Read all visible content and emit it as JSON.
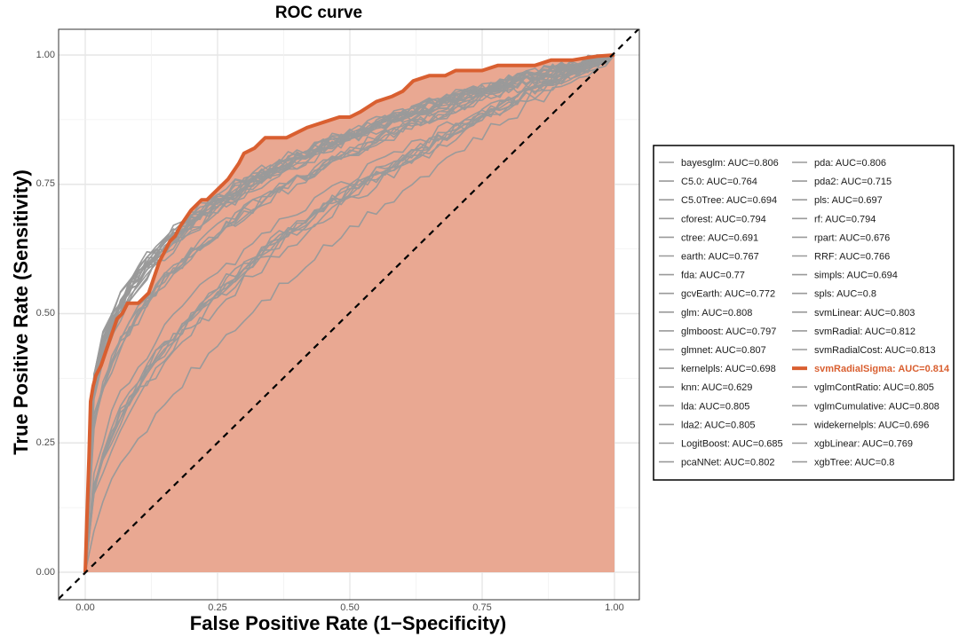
{
  "chart_data": {
    "type": "line",
    "title": "ROC curve",
    "xlabel": "False Positive Rate (1−Specificity)",
    "ylabel": "True Positive Rate (Sensitivity)",
    "xlim": [
      0,
      1
    ],
    "ylim": [
      0,
      1
    ],
    "x_ticks": [
      "0.00",
      "0.25",
      "0.50",
      "0.75",
      "1.00"
    ],
    "y_ticks": [
      "0.00",
      "0.25",
      "0.50",
      "0.75",
      "1.00"
    ],
    "grid": true,
    "legend_position": "right",
    "reference_line": "diagonal dashed line y = x",
    "fill_color": "#e9a892",
    "colors": {
      "highlight": "#d95f30",
      "other": "#9a9a9a",
      "diagonal": "#000000"
    },
    "highlighted_series": "svmRadialSigma",
    "highlight_curve": {
      "x": [
        0,
        0.003,
        0.007,
        0.01,
        0.015,
        0.02,
        0.03,
        0.04,
        0.05,
        0.06,
        0.07,
        0.08,
        0.1,
        0.12,
        0.14,
        0.15,
        0.16,
        0.17,
        0.18,
        0.2,
        0.22,
        0.23,
        0.24,
        0.25,
        0.27,
        0.29,
        0.3,
        0.32,
        0.34,
        0.36,
        0.38,
        0.4,
        0.42,
        0.45,
        0.48,
        0.5,
        0.52,
        0.55,
        0.58,
        0.6,
        0.62,
        0.65,
        0.68,
        0.7,
        0.72,
        0.75,
        0.78,
        0.8,
        0.82,
        0.85,
        0.88,
        0.9,
        0.92,
        0.95,
        0.97,
        1.0
      ],
      "y": [
        0,
        0.1,
        0.22,
        0.33,
        0.36,
        0.38,
        0.4,
        0.43,
        0.46,
        0.49,
        0.5,
        0.52,
        0.52,
        0.54,
        0.6,
        0.62,
        0.64,
        0.65,
        0.67,
        0.7,
        0.72,
        0.72,
        0.73,
        0.74,
        0.76,
        0.79,
        0.81,
        0.82,
        0.84,
        0.84,
        0.84,
        0.85,
        0.86,
        0.87,
        0.88,
        0.88,
        0.89,
        0.91,
        0.92,
        0.93,
        0.95,
        0.96,
        0.96,
        0.97,
        0.97,
        0.97,
        0.98,
        0.98,
        0.98,
        0.98,
        0.99,
        0.99,
        0.99,
        0.995,
        0.998,
        1.0
      ]
    },
    "series": [
      {
        "name": "bayesglm",
        "auc": "0.806"
      },
      {
        "name": "C5.0",
        "auc": "0.764"
      },
      {
        "name": "C5.0Tree",
        "auc": "0.694"
      },
      {
        "name": "cforest",
        "auc": "0.794"
      },
      {
        "name": "ctree",
        "auc": "0.691"
      },
      {
        "name": "earth",
        "auc": "0.767"
      },
      {
        "name": "fda",
        "auc": "0.77"
      },
      {
        "name": "gcvEarth",
        "auc": "0.772"
      },
      {
        "name": "glm",
        "auc": "0.808"
      },
      {
        "name": "glmboost",
        "auc": "0.797"
      },
      {
        "name": "glmnet",
        "auc": "0.807"
      },
      {
        "name": "kernelpls",
        "auc": "0.698"
      },
      {
        "name": "knn",
        "auc": "0.629"
      },
      {
        "name": "lda",
        "auc": "0.805"
      },
      {
        "name": "lda2",
        "auc": "0.805"
      },
      {
        "name": "LogitBoost",
        "auc": "0.685"
      },
      {
        "name": "pcaNNet",
        "auc": "0.802"
      },
      {
        "name": "pda",
        "auc": "0.806"
      },
      {
        "name": "pda2",
        "auc": "0.715"
      },
      {
        "name": "pls",
        "auc": "0.697"
      },
      {
        "name": "rf",
        "auc": "0.794"
      },
      {
        "name": "rpart",
        "auc": "0.676"
      },
      {
        "name": "RRF",
        "auc": "0.766"
      },
      {
        "name": "simpls",
        "auc": "0.694"
      },
      {
        "name": "spls",
        "auc": "0.8"
      },
      {
        "name": "svmLinear",
        "auc": "0.803"
      },
      {
        "name": "svmRadial",
        "auc": "0.812"
      },
      {
        "name": "svmRadialCost",
        "auc": "0.813"
      },
      {
        "name": "svmRadialSigma",
        "auc": "0.814"
      },
      {
        "name": "vglmContRatio",
        "auc": "0.805"
      },
      {
        "name": "vglmCumulative",
        "auc": "0.808"
      },
      {
        "name": "widekernelpls",
        "auc": "0.696"
      },
      {
        "name": "xgbLinear",
        "auc": "0.769"
      },
      {
        "name": "xgbTree",
        "auc": "0.8"
      }
    ],
    "legend_labels": [
      "bayesglm: AUC=0.806",
      "C5.0: AUC=0.764",
      "C5.0Tree: AUC=0.694",
      "cforest: AUC=0.794",
      "ctree: AUC=0.691",
      "earth: AUC=0.767",
      "fda: AUC=0.77",
      "gcvEarth: AUC=0.772",
      "glm: AUC=0.808",
      "glmboost: AUC=0.797",
      "glmnet: AUC=0.807",
      "kernelpls: AUC=0.698",
      "knn: AUC=0.629",
      "lda: AUC=0.805",
      "lda2: AUC=0.805",
      "LogitBoost: AUC=0.685",
      "pcaNNet: AUC=0.802",
      "pda: AUC=0.806",
      "pda2: AUC=0.715",
      "pls: AUC=0.697",
      "rf: AUC=0.794",
      "rpart: AUC=0.676",
      "RRF: AUC=0.766",
      "simpls: AUC=0.694",
      "spls: AUC=0.8",
      "svmLinear: AUC=0.803",
      "svmRadial: AUC=0.812",
      "svmRadialCost: AUC=0.813",
      "svmRadialSigma: AUC=0.814",
      "vglmContRatio: AUC=0.805",
      "vglmCumulative: AUC=0.808",
      "widekernelpls: AUC=0.696",
      "xgbLinear: AUC=0.769",
      "xgbTree: AUC=0.8"
    ]
  }
}
